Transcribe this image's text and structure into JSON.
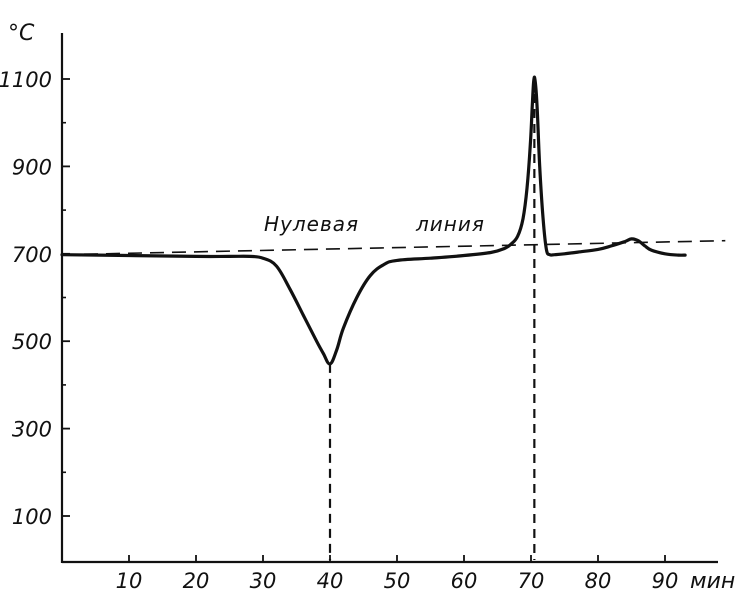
{
  "chart_data": {
    "type": "line",
    "title": "",
    "y_unit_label": "°C",
    "x_unit_label": "мин",
    "xlim": [
      0,
      95
    ],
    "ylim": [
      0,
      1200
    ],
    "x_ticks": [
      10,
      20,
      30,
      40,
      50,
      60,
      70,
      80,
      90
    ],
    "x_tick_labels": [
      "10",
      "20",
      "30",
      "40",
      "50",
      "60",
      "70",
      "80",
      "90"
    ],
    "y_ticks": [
      100,
      300,
      500,
      700,
      900,
      1100
    ],
    "y_tick_labels": [
      "100",
      "300",
      "500",
      "700",
      "900",
      "1100"
    ],
    "annotation": {
      "text_left": "Нулевая",
      "text_right": "линия",
      "line": {
        "x": [
          0,
          99
        ],
        "y": [
          698,
          730
        ]
      }
    },
    "markers": [
      {
        "x": 40,
        "from": 0,
        "to": 448
      },
      {
        "x": 70.5,
        "from": 0,
        "to": 1100
      }
    ],
    "series": [
      {
        "x": [
          0,
          10,
          20,
          25,
          28,
          30,
          32,
          34,
          36,
          38,
          39,
          40,
          41,
          42,
          44,
          46,
          48,
          50,
          55,
          60,
          64,
          66,
          67,
          68,
          68.8,
          69.4,
          69.9,
          70.2,
          70.4,
          70.6,
          70.9,
          71.3,
          71.8,
          72.3,
          72.8,
          73.5,
          75,
          77,
          80,
          82,
          84,
          85,
          86,
          87,
          88,
          90,
          92,
          93
        ],
        "y": [
          698,
          696,
          694,
          694,
          694,
          690,
          672,
          620,
          560,
          500,
          472,
          448,
          480,
          530,
          600,
          650,
          675,
          685,
          690,
          696,
          703,
          712,
          722,
          740,
          780,
          850,
          950,
          1040,
          1095,
          1098,
          1040,
          900,
          780,
          710,
          698,
          698,
          700,
          704,
          710,
          718,
          728,
          734,
          730,
          718,
          708,
          700,
          697,
          697
        ]
      }
    ]
  }
}
